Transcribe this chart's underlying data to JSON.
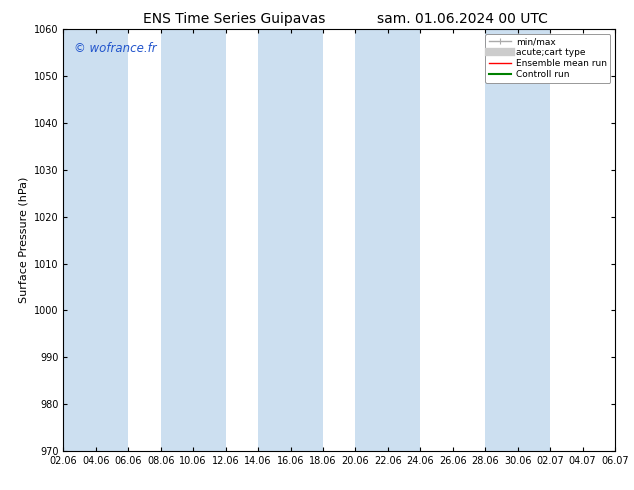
{
  "title_left": "ENS Time Series Guipavas",
  "title_right": "sam. 01.06.2024 00 UTC",
  "ylabel": "Surface Pressure (hPa)",
  "ylim": [
    970,
    1060
  ],
  "yticks": [
    970,
    980,
    990,
    1000,
    1010,
    1020,
    1030,
    1040,
    1050,
    1060
  ],
  "xtick_labels": [
    "02.06",
    "04.06",
    "06.06",
    "08.06",
    "10.06",
    "12.06",
    "14.06",
    "16.06",
    "18.06",
    "20.06",
    "22.06",
    "24.06",
    "26.06",
    "28.06",
    "30.06",
    "02.07",
    "04.07",
    "06.07"
  ],
  "watermark": "© wofrance.fr",
  "legend_entries": [
    {
      "label": "min/max",
      "color": "#aaaaaa",
      "lw": 1.0
    },
    {
      "label": "acute;cart type",
      "color": "#cccccc",
      "lw": 6.0
    },
    {
      "label": "Ensemble mean run",
      "color": "red",
      "lw": 1.0
    },
    {
      "label": "Controll run",
      "color": "green",
      "lw": 1.5
    }
  ],
  "band_color": "#ccdff0",
  "band_alpha": 1.0,
  "background_color": "#ffffff",
  "fig_width": 6.34,
  "fig_height": 4.9,
  "dpi": 100,
  "band_indices": [
    0,
    3,
    6,
    9,
    13
  ]
}
